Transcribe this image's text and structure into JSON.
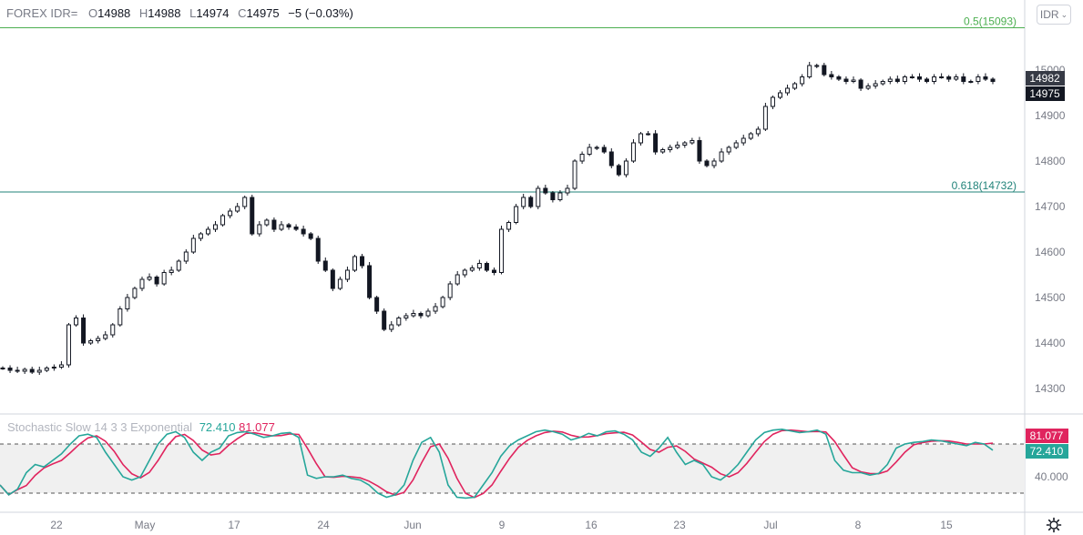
{
  "header": {
    "symbol": "FOREX IDR=",
    "o_label": "O",
    "open": "14988",
    "h_label": "H",
    "high": "14988",
    "l_label": "L",
    "low": "14974",
    "c_label": "C",
    "close": "14975",
    "change": "−5 (−0.03%)"
  },
  "currency_button": "IDR",
  "stoch": {
    "label": "Stochastic Slow 14 3 3 Exponential",
    "k_value": "72.410",
    "d_value": "81.077"
  },
  "colors": {
    "fib50": "#4caf50",
    "fib618": "#22837a",
    "k_line": "#26a69a",
    "d_line": "#e0245e",
    "price_label_bg": "#131722",
    "stoch_band": "#f0f0f0"
  },
  "chart_data": [
    {
      "type": "candlestick",
      "y_ticks": [
        "14300",
        "14400",
        "14500",
        "14600",
        "14700",
        "14800",
        "14900",
        "15000"
      ],
      "ylim": [
        14250,
        15110
      ],
      "x_tick_labels": [
        "22",
        "May",
        "17",
        "24",
        "Jun",
        "9",
        "16",
        "23",
        "Jul",
        "8",
        "15"
      ],
      "levels": [
        {
          "label": "0.5(15093)",
          "value": 15093
        },
        {
          "label": "0.618(14732)",
          "value": 14732
        }
      ],
      "price_labels": [
        "14982",
        "14975"
      ],
      "series_close": [
        14345,
        14340,
        14338,
        14342,
        14336,
        14340,
        14345,
        14347,
        14352,
        14440,
        14455,
        14400,
        14405,
        14410,
        14418,
        14440,
        14475,
        14500,
        14520,
        14540,
        14545,
        14530,
        14555,
        14560,
        14580,
        14600,
        14630,
        14640,
        14650,
        14660,
        14680,
        14690,
        14700,
        14720,
        14640,
        14660,
        14670,
        14650,
        14660,
        14655,
        14650,
        14640,
        14630,
        14580,
        14560,
        14520,
        14540,
        14560,
        14590,
        14570,
        14500,
        14470,
        14430,
        14440,
        14455,
        14460,
        14465,
        14460,
        14470,
        14480,
        14500,
        14530,
        14550,
        14560,
        14565,
        14575,
        14560,
        14555,
        14650,
        14665,
        14700,
        14720,
        14700,
        14740,
        14730,
        14715,
        14730,
        14740,
        14800,
        14815,
        14830,
        14830,
        14820,
        14790,
        14770,
        14800,
        14840,
        14860,
        14860,
        14820,
        14825,
        14830,
        14835,
        14840,
        14845,
        14800,
        14790,
        14800,
        14820,
        14830,
        14840,
        14850,
        14860,
        14870,
        14920,
        14940,
        14950,
        14960,
        14970,
        14985,
        15010,
        15010,
        14990,
        14985,
        14980,
        14975,
        14978,
        14960,
        14965,
        14970,
        14975,
        14980,
        14975,
        14985,
        14985,
        14980,
        14975,
        14985,
        14985,
        14980,
        14985,
        14975,
        14975,
        14985,
        14980,
        14975
      ]
    },
    {
      "type": "line",
      "title": "Stochastic Slow 14 3 3 Exponential",
      "ylim": [
        0,
        100
      ],
      "y_ticks": [
        "40.000"
      ],
      "levels": [
        80,
        20
      ],
      "value_labels": [
        "81.077",
        "72.410"
      ],
      "series": [
        {
          "name": "%K",
          "last": 72.41
        },
        {
          "name": "%D",
          "last": 81.077
        }
      ],
      "k_values": [
        30,
        18,
        25,
        45,
        55,
        52,
        60,
        68,
        80,
        90,
        92,
        88,
        70,
        55,
        40,
        36,
        40,
        60,
        80,
        92,
        95,
        88,
        70,
        60,
        70,
        75,
        90,
        94,
        95,
        92,
        88,
        90,
        93,
        94,
        88,
        42,
        38,
        40,
        40,
        42,
        38,
        36,
        30,
        20,
        15,
        18,
        30,
        60,
        82,
        88,
        70,
        30,
        15,
        14,
        15,
        30,
        45,
        65,
        78,
        85,
        90,
        95,
        97,
        95,
        92,
        85,
        88,
        93,
        90,
        95,
        96,
        92,
        85,
        70,
        65,
        75,
        88,
        70,
        55,
        60,
        55,
        40,
        36,
        44,
        55,
        70,
        85,
        94,
        97,
        98,
        96,
        94,
        95,
        97,
        92,
        60,
        48,
        45,
        45,
        42,
        44,
        55,
        75,
        80,
        82,
        83,
        85,
        84,
        82,
        80,
        78,
        82,
        80,
        72.41
      ]
    }
  ]
}
